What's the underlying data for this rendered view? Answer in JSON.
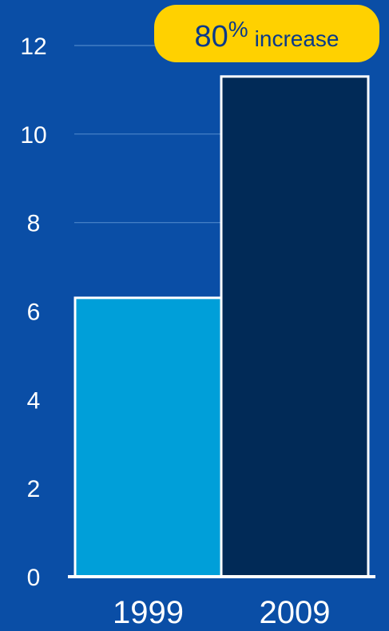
{
  "chart_data": {
    "type": "bar",
    "title": "",
    "xlabel": "",
    "ylabel": "",
    "categories": [
      "1999",
      "2009"
    ],
    "values": [
      6.3,
      11.3
    ],
    "ylim": [
      0,
      12
    ],
    "yticks": [
      0,
      2,
      4,
      6,
      8,
      10,
      12
    ],
    "grid": true,
    "annotation": {
      "value": "80",
      "unit": "%",
      "text": "increase"
    }
  },
  "colors": {
    "background": "#0a4ea6",
    "bar_1999": "#009fd9",
    "bar_2009": "#012a57",
    "bar_outline": "#ffffff",
    "gridline": "#4d86c9",
    "axis": "#ffffff",
    "callout_fill": "#ffd100",
    "callout_text": "#0a3a8a"
  }
}
